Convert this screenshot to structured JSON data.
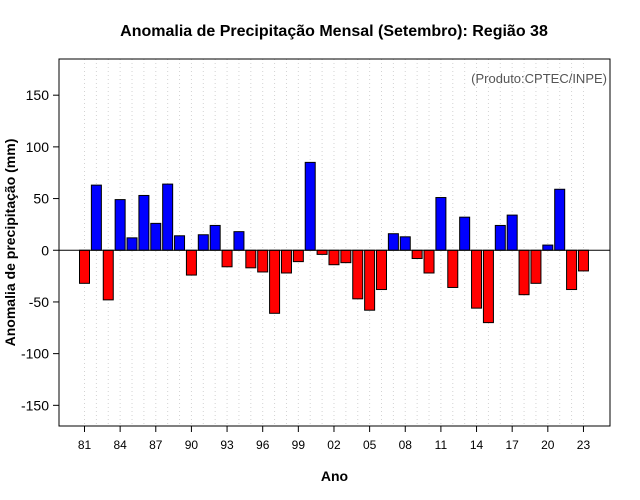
{
  "chart_data": {
    "type": "bar",
    "title": "Anomalia de Precipitação Mensal (Setembro): Região 38",
    "xlabel": "Ano",
    "ylabel": "Anomalia de precipitação (mm)",
    "annotation": "(Produto:CPTEC/INPE)",
    "ylim": [
      -170,
      185
    ],
    "yticks": [
      -150,
      -100,
      -50,
      0,
      50,
      100,
      150
    ],
    "xtick_labels": [
      "81",
      "84",
      "87",
      "90",
      "93",
      "96",
      "99",
      "02",
      "05",
      "08",
      "11",
      "14",
      "17",
      "20",
      "23"
    ],
    "xtick_label_every": 3,
    "grid": true,
    "positive_color": "#0000ff",
    "negative_color": "#ff0000",
    "categories": [
      "1981",
      "1982",
      "1983",
      "1984",
      "1985",
      "1986",
      "1987",
      "1988",
      "1989",
      "1990",
      "1991",
      "1992",
      "1993",
      "1994",
      "1995",
      "1996",
      "1997",
      "1998",
      "1999",
      "2000",
      "2001",
      "2002",
      "2003",
      "2004",
      "2005",
      "2006",
      "2007",
      "2008",
      "2009",
      "2010",
      "2011",
      "2012",
      "2013",
      "2014",
      "2015",
      "2016",
      "2017",
      "2018",
      "2019",
      "2020",
      "2021",
      "2022",
      "2023"
    ],
    "values": [
      -32,
      63,
      -48,
      49,
      12,
      53,
      26,
      64,
      14,
      -24,
      15,
      24,
      -16,
      18,
      -17,
      -21,
      -61,
      -22,
      -11,
      85,
      -4,
      -14,
      -12,
      -47,
      -58,
      -38,
      16,
      13,
      -8,
      -22,
      51,
      -36,
      32,
      -56,
      -70,
      24,
      34,
      -43,
      -32,
      5,
      59,
      -38,
      -20
    ]
  }
}
